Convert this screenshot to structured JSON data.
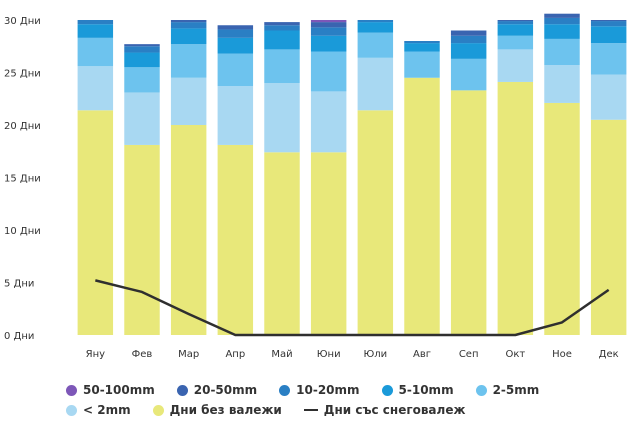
{
  "chart_data": {
    "type": "bar",
    "stacked": true,
    "categories": [
      "Яну",
      "Фев",
      "Мар",
      "Апр",
      "Май",
      "Юни",
      "Юли",
      "Авг",
      "Сеп",
      "Окт",
      "Ное",
      "Дек"
    ],
    "y_ticks": [
      "0 Дни",
      "5 Дни",
      "10 Дни",
      "15 Дни",
      "20 Дни",
      "25 Дни",
      "30 Дни"
    ],
    "ylim": [
      0,
      30
    ],
    "grid": false,
    "legend_position": "bottom",
    "series": [
      {
        "name": "Дни без валежи",
        "color": "#e8e87a",
        "values": [
          21.4,
          18.1,
          20.0,
          18.1,
          17.4,
          17.4,
          21.4,
          24.5,
          23.3,
          24.1,
          22.1,
          20.5
        ]
      },
      {
        "name": "< 2mm",
        "color": "#a8d8f2",
        "values": [
          4.2,
          5.0,
          4.5,
          5.6,
          6.6,
          5.8,
          5.0,
          0.0,
          0.0,
          3.1,
          3.6,
          4.3
        ]
      },
      {
        "name": "2-5mm",
        "color": "#6dc3ee",
        "values": [
          2.7,
          2.4,
          3.2,
          3.1,
          3.2,
          3.8,
          2.4,
          2.5,
          3.0,
          1.3,
          2.5,
          3.0
        ]
      },
      {
        "name": "5-10mm",
        "color": "#1a9ad9",
        "values": [
          1.3,
          1.4,
          1.5,
          1.5,
          1.8,
          1.5,
          1.0,
          0.8,
          1.5,
          1.1,
          1.4,
          1.6
        ]
      },
      {
        "name": "10-20mm",
        "color": "#2a7fc4",
        "values": [
          0.4,
          0.6,
          0.6,
          0.8,
          0.5,
          0.8,
          0.2,
          0.2,
          0.7,
          0.3,
          0.6,
          0.5
        ]
      },
      {
        "name": "20-50mm",
        "color": "#3a64b0",
        "values": [
          0.0,
          0.2,
          0.2,
          0.4,
          0.3,
          0.5,
          0.0,
          0.0,
          0.5,
          0.1,
          0.4,
          0.1
        ]
      },
      {
        "name": "50-100mm",
        "color": "#7d57b8",
        "values": [
          0.0,
          0.0,
          0.0,
          0.0,
          0.0,
          0.2,
          0.0,
          0.0,
          0.0,
          0.0,
          0.0,
          0.0
        ]
      }
    ],
    "line_series": {
      "name": "Дни със снеговалеж",
      "color": "#2f2f2f",
      "values": [
        5.2,
        4.1,
        2.0,
        0.0,
        0.0,
        0.0,
        0.0,
        0.0,
        0.0,
        0.0,
        1.2,
        4.3
      ]
    }
  },
  "legend": {
    "row1": [
      {
        "label": "50-100mm",
        "color": "#7d57b8"
      },
      {
        "label": "20-50mm",
        "color": "#3a64b0"
      },
      {
        "label": "10-20mm",
        "color": "#2a7fc4"
      },
      {
        "label": "5-10mm",
        "color": "#1a9ad9"
      },
      {
        "label": "2-5mm",
        "color": "#6dc3ee"
      }
    ],
    "row2": [
      {
        "label": "< 2mm",
        "color": "#a8d8f2"
      },
      {
        "label": "Дни без валежи",
        "color": "#e8e87a"
      }
    ],
    "line_label": "Дни със снеговалеж"
  }
}
